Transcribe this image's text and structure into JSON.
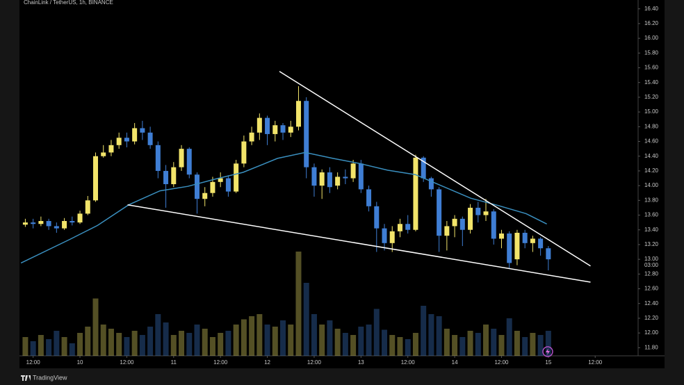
{
  "chart_data": {
    "type": "candlestick",
    "title": "ChainLink / TetherUS, 1h, BINANCE",
    "x": [
      10,
      12,
      14,
      16,
      18,
      20,
      22,
      24,
      26,
      28,
      30,
      32,
      34,
      36,
      38,
      40,
      42,
      44,
      46,
      48,
      50,
      52,
      54,
      56,
      58,
      60,
      62,
      64,
      66,
      68,
      70,
      72,
      74,
      76,
      78,
      80,
      82,
      84,
      86,
      88,
      90,
      92,
      94,
      96,
      98,
      100,
      102,
      104,
      106,
      108,
      110,
      112,
      114,
      116,
      118,
      120,
      122,
      124,
      126,
      128,
      130,
      132,
      134,
      136,
      138,
      140,
      142,
      144
    ],
    "open": [
      13.47,
      13.5,
      13.48,
      13.52,
      13.45,
      13.42,
      13.52,
      13.5,
      13.62,
      13.8,
      14.4,
      14.45,
      14.55,
      14.65,
      14.6,
      14.78,
      14.72,
      14.55,
      14.2,
      14.02,
      14.25,
      14.5,
      14.15,
      13.82,
      13.9,
      14.05,
      14.1,
      13.92,
      14.3,
      14.6,
      14.72,
      14.92,
      14.7,
      14.82,
      14.72,
      14.8,
      15.15,
      14.25,
      14.0,
      14.18,
      14.0,
      14.12,
      14.1,
      14.3,
      13.95,
      13.72,
      13.42,
      13.22,
      13.38,
      13.48,
      13.4,
      14.38,
      14.1,
      13.95,
      13.32,
      13.45,
      13.55,
      13.4,
      13.7,
      13.6,
      13.65,
      13.28,
      13.35,
      13.0,
      13.36,
      13.22,
      13.28,
      13.15
    ],
    "high": [
      13.55,
      13.55,
      13.58,
      13.55,
      13.5,
      13.56,
      13.58,
      13.66,
      13.86,
      14.45,
      14.55,
      14.62,
      14.72,
      14.72,
      14.85,
      14.88,
      14.8,
      14.6,
      14.28,
      14.32,
      14.55,
      14.52,
      14.18,
      13.98,
      14.12,
      14.18,
      14.14,
      14.35,
      14.68,
      14.8,
      14.98,
      14.95,
      14.88,
      14.85,
      14.88,
      15.35,
      15.2,
      14.3,
      14.22,
      14.25,
      14.18,
      14.22,
      14.35,
      14.35,
      14.0,
      13.78,
      13.48,
      13.45,
      13.55,
      13.6,
      14.42,
      14.4,
      14.12,
      13.98,
      13.52,
      13.6,
      13.58,
      13.75,
      13.78,
      13.82,
      13.68,
      13.4,
      13.38,
      13.4,
      13.4,
      13.32,
      13.3,
      13.18
    ],
    "low": [
      13.44,
      13.42,
      13.45,
      13.4,
      13.36,
      13.4,
      13.46,
      13.48,
      13.6,
      13.78,
      14.38,
      14.4,
      14.5,
      14.52,
      14.56,
      14.62,
      14.5,
      14.1,
      13.7,
      13.98,
      14.2,
      14.1,
      13.62,
      13.72,
      13.85,
      13.98,
      13.85,
      13.9,
      14.25,
      14.55,
      14.62,
      14.55,
      14.6,
      14.62,
      14.66,
      14.75,
      14.1,
      13.85,
      13.82,
      13.9,
      13.95,
      14.02,
      14.05,
      13.9,
      13.65,
      13.1,
      13.12,
      13.1,
      13.3,
      13.35,
      13.38,
      14.05,
      13.85,
      13.1,
      13.12,
      13.3,
      13.18,
      13.35,
      13.5,
      13.52,
      13.2,
      13.15,
      12.88,
      12.92,
      13.15,
      13.1,
      13.05,
      12.85
    ],
    "close": [
      13.5,
      13.48,
      13.52,
      13.45,
      13.42,
      13.52,
      13.5,
      13.62,
      13.8,
      14.4,
      14.45,
      14.55,
      14.65,
      14.6,
      14.78,
      14.72,
      14.55,
      14.2,
      14.02,
      14.25,
      14.5,
      14.15,
      13.82,
      13.9,
      14.05,
      14.1,
      13.92,
      14.3,
      14.6,
      14.72,
      14.92,
      14.7,
      14.82,
      14.72,
      14.8,
      15.15,
      14.25,
      14.0,
      14.18,
      13.98,
      14.12,
      14.1,
      14.3,
      13.95,
      13.72,
      13.42,
      13.22,
      13.38,
      13.48,
      13.4,
      14.38,
      14.1,
      13.95,
      13.32,
      13.45,
      13.55,
      13.4,
      13.7,
      13.6,
      13.65,
      13.28,
      13.35,
      12.95,
      13.36,
      13.22,
      13.28,
      13.15,
      13.0
    ],
    "volume": [
      18,
      14,
      20,
      16,
      24,
      18,
      12,
      22,
      28,
      55,
      30,
      26,
      22,
      18,
      24,
      20,
      28,
      40,
      32,
      20,
      24,
      22,
      30,
      26,
      18,
      22,
      24,
      30,
      35,
      38,
      40,
      30,
      28,
      34,
      30,
      100,
      70,
      40,
      30,
      34,
      26,
      22,
      20,
      28,
      30,
      45,
      25,
      20,
      18,
      16,
      22,
      48,
      40,
      38,
      26,
      20,
      18,
      24,
      22,
      30,
      26,
      20,
      36,
      24,
      18,
      22,
      20,
      24
    ],
    "vlim": [
      0,
      100
    ],
    "up_color": "#f2e46a",
    "down_color": "#3f7ed4",
    "ma": {
      "color": "#3a8fbf",
      "x": [
        8.9,
        21.4,
        28.5,
        36.5,
        44.5,
        51.6,
        58.7,
        65.8,
        74.6,
        81.7,
        88.8,
        95.7,
        102.8,
        109.9,
        117,
        124.1,
        131.2,
        138.3,
        143.6
      ],
      "values": [
        12.95,
        13.27,
        13.46,
        13.74,
        13.93,
        13.99,
        14.09,
        14.18,
        14.37,
        14.45,
        14.37,
        14.3,
        14.21,
        14.15,
        13.99,
        13.83,
        13.73,
        13.62,
        13.48
      ]
    },
    "trendlines": [
      {
        "x": [
          75.1,
          154.8
        ],
        "values": [
          15.55,
          12.91
        ]
      },
      {
        "x": [
          36.2,
          154.8
        ],
        "values": [
          13.74,
          12.69
        ]
      }
    ],
    "trendline_color": "#ffffff",
    "xlim": [
      8.5,
      167
    ],
    "ylim": [
      11.69,
      16.52
    ],
    "xticks": [
      {
        "value": 12,
        "label": "12:00"
      },
      {
        "value": 24,
        "label": "10"
      },
      {
        "value": 36,
        "label": "12:00"
      },
      {
        "value": 48,
        "label": "11"
      },
      {
        "value": 60,
        "label": "12:00"
      },
      {
        "value": 72,
        "label": "12"
      },
      {
        "value": 84,
        "label": "12:00"
      },
      {
        "value": 96,
        "label": "13"
      },
      {
        "value": 108,
        "label": "12:00"
      },
      {
        "value": 120,
        "label": "14"
      },
      {
        "value": 132,
        "label": "12:00"
      },
      {
        "value": 144,
        "label": "15"
      },
      {
        "value": 156,
        "label": "12:00"
      }
    ],
    "yticks": [
      {
        "value": 11.8,
        "label": "11.80"
      },
      {
        "value": 12,
        "label": "12.00"
      },
      {
        "value": 12.2,
        "label": "12.20"
      },
      {
        "value": 12.4,
        "label": "12.40"
      },
      {
        "value": 12.6,
        "label": "12.60"
      },
      {
        "value": 12.8,
        "label": "12.80"
      },
      {
        "value": 13,
        "label": "13.00"
      },
      {
        "value": 13.2,
        "label": "13.20"
      },
      {
        "value": 13.4,
        "label": "13.40"
      },
      {
        "value": 13.6,
        "label": "13.60"
      },
      {
        "value": 13.8,
        "label": "13.80"
      },
      {
        "value": 14,
        "label": "14.00"
      },
      {
        "value": 14.2,
        "label": "14.20"
      },
      {
        "value": 14.4,
        "label": "14.40"
      },
      {
        "value": 14.6,
        "label": "14.60"
      },
      {
        "value": 14.8,
        "label": "14.80"
      },
      {
        "value": 15,
        "label": "15.00"
      },
      {
        "value": 15.2,
        "label": "15.20"
      },
      {
        "value": 15.4,
        "label": "15.40"
      },
      {
        "value": 15.6,
        "label": "15.60"
      },
      {
        "value": 15.8,
        "label": "15.80"
      },
      {
        "value": 16,
        "label": "16.00"
      },
      {
        "value": 16.2,
        "label": "16.20"
      },
      {
        "value": 16.4,
        "label": "16.40"
      }
    ],
    "countdown": "03:00"
  },
  "footer": {
    "brand": "TradingView"
  }
}
